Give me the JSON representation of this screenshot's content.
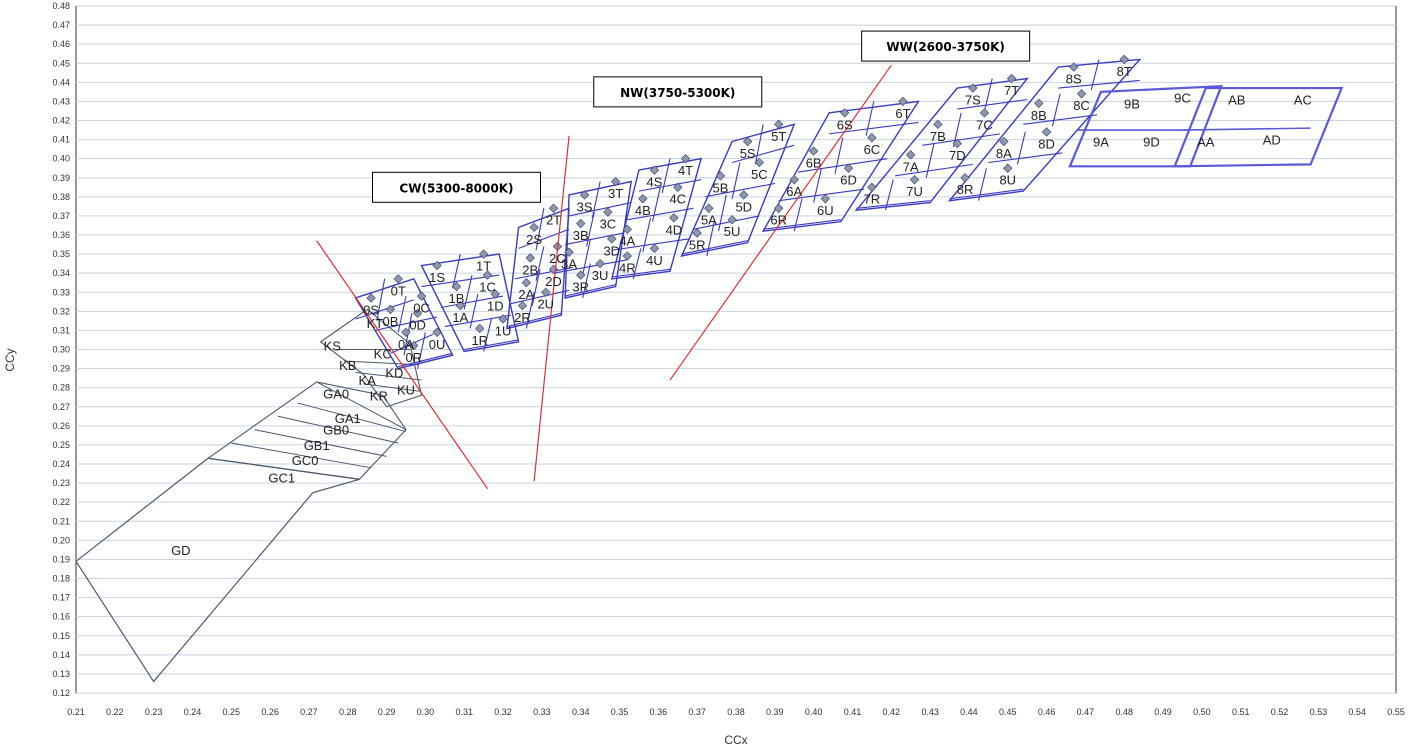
{
  "chart_data": {
    "type": "scatter",
    "xlabel": "CCx",
    "ylabel": "CCy",
    "xlim": [
      0.21,
      0.55
    ],
    "ylim": [
      0.12,
      0.48
    ],
    "grid": "horizontal",
    "xticks": [
      "0.21",
      "0.22",
      "0.23",
      "0.24",
      "0.25",
      "0.26",
      "0.27",
      "0.28",
      "0.29",
      "0.30",
      "0.31",
      "0.32",
      "0.33",
      "0.34",
      "0.35",
      "0.36",
      "0.37",
      "0.38",
      "0.39",
      "0.40",
      "0.41",
      "0.42",
      "0.43",
      "0.44",
      "0.45",
      "0.46",
      "0.47",
      "0.48",
      "0.49",
      "0.50",
      "0.51",
      "0.52",
      "0.53",
      "0.54",
      "0.55"
    ],
    "yticks": [
      "0.12",
      "0.13",
      "0.14",
      "0.15",
      "0.16",
      "0.17",
      "0.18",
      "0.19",
      "0.20",
      "0.21",
      "0.22",
      "0.23",
      "0.24",
      "0.25",
      "0.26",
      "0.27",
      "0.28",
      "0.29",
      "0.30",
      "0.31",
      "0.32",
      "0.33",
      "0.34",
      "0.35",
      "0.36",
      "0.37",
      "0.38",
      "0.39",
      "0.40",
      "0.41",
      "0.42",
      "0.43",
      "0.44",
      "0.45",
      "0.46",
      "0.47",
      "0.48"
    ],
    "region_boxes": [
      {
        "label": "CW(5300-8000K)",
        "x": 0.308,
        "y": 0.385
      },
      {
        "label": "NW(3750-5300K)",
        "x": 0.365,
        "y": 0.435
      },
      {
        "label": "WW(2600-3750K)",
        "x": 0.434,
        "y": 0.459
      }
    ],
    "boundary_lines": [
      {
        "x1": 0.272,
        "y1": 0.357,
        "x2": 0.316,
        "y2": 0.227
      },
      {
        "x1": 0.337,
        "y1": 0.412,
        "x2": 0.328,
        "y2": 0.231
      },
      {
        "x1": 0.42,
        "y1": 0.449,
        "x2": 0.363,
        "y2": 0.284
      }
    ],
    "bin_rows": [
      {
        "y_top": 0.312,
        "y_bot": 0.302,
        "labels": [
          "KS",
          "KT"
        ]
      },
      {
        "y_top": 0.293,
        "y_bot": 0.287,
        "labels": [
          "KB",
          "KC"
        ]
      }
    ],
    "bins": [
      {
        "label": "KS",
        "x": 0.276,
        "y": 0.302
      },
      {
        "label": "KT",
        "x": 0.287,
        "y": 0.314
      },
      {
        "label": "KB",
        "x": 0.28,
        "y": 0.292
      },
      {
        "label": "KC",
        "x": 0.289,
        "y": 0.298
      },
      {
        "label": "KA",
        "x": 0.285,
        "y": 0.284
      },
      {
        "label": "KD",
        "x": 0.292,
        "y": 0.288
      },
      {
        "label": "KR",
        "x": 0.288,
        "y": 0.276
      },
      {
        "label": "KU",
        "x": 0.295,
        "y": 0.279
      },
      {
        "label": "GA0",
        "x": 0.277,
        "y": 0.277
      },
      {
        "label": "GA1",
        "x": 0.28,
        "y": 0.264
      },
      {
        "label": "GB0",
        "x": 0.277,
        "y": 0.258
      },
      {
        "label": "GB1",
        "x": 0.272,
        "y": 0.25
      },
      {
        "label": "GC0",
        "x": 0.269,
        "y": 0.242
      },
      {
        "label": "GC1",
        "x": 0.263,
        "y": 0.233
      },
      {
        "label": "GD",
        "x": 0.237,
        "y": 0.195
      },
      {
        "label": "0S",
        "x": 0.286,
        "y": 0.321
      },
      {
        "label": "0T",
        "x": 0.293,
        "y": 0.331
      },
      {
        "label": "0B",
        "x": 0.291,
        "y": 0.315
      },
      {
        "label": "0C",
        "x": 0.299,
        "y": 0.322
      },
      {
        "label": "0A",
        "x": 0.295,
        "y": 0.303
      },
      {
        "label": "0D",
        "x": 0.298,
        "y": 0.313
      },
      {
        "label": "0R",
        "x": 0.297,
        "y": 0.296
      },
      {
        "label": "0U",
        "x": 0.303,
        "y": 0.303
      },
      {
        "label": "1S",
        "x": 0.303,
        "y": 0.338
      },
      {
        "label": "1T",
        "x": 0.315,
        "y": 0.344
      },
      {
        "label": "1B",
        "x": 0.308,
        "y": 0.327
      },
      {
        "label": "1C",
        "x": 0.316,
        "y": 0.333
      },
      {
        "label": "1A",
        "x": 0.309,
        "y": 0.317
      },
      {
        "label": "1D",
        "x": 0.318,
        "y": 0.323
      },
      {
        "label": "1R",
        "x": 0.314,
        "y": 0.305
      },
      {
        "label": "1U",
        "x": 0.32,
        "y": 0.31
      },
      {
        "label": "2S",
        "x": 0.328,
        "y": 0.358
      },
      {
        "label": "2T",
        "x": 0.333,
        "y": 0.368
      },
      {
        "label": "2B",
        "x": 0.327,
        "y": 0.342
      },
      {
        "label": "2C",
        "x": 0.334,
        "y": 0.348
      },
      {
        "label": "2A",
        "x": 0.326,
        "y": 0.329
      },
      {
        "label": "2D",
        "x": 0.333,
        "y": 0.336
      },
      {
        "label": "2R",
        "x": 0.325,
        "y": 0.317
      },
      {
        "label": "2U",
        "x": 0.331,
        "y": 0.324
      },
      {
        "label": "3S",
        "x": 0.341,
        "y": 0.375
      },
      {
        "label": "3T",
        "x": 0.349,
        "y": 0.382
      },
      {
        "label": "3B",
        "x": 0.34,
        "y": 0.36
      },
      {
        "label": "3C",
        "x": 0.347,
        "y": 0.366
      },
      {
        "label": "3A",
        "x": 0.337,
        "y": 0.345
      },
      {
        "label": "3D",
        "x": 0.348,
        "y": 0.352
      },
      {
        "label": "3R",
        "x": 0.34,
        "y": 0.333
      },
      {
        "label": "3U",
        "x": 0.345,
        "y": 0.339
      },
      {
        "label": "4S",
        "x": 0.359,
        "y": 0.388
      },
      {
        "label": "4T",
        "x": 0.367,
        "y": 0.394
      },
      {
        "label": "4B",
        "x": 0.356,
        "y": 0.373
      },
      {
        "label": "4C",
        "x": 0.365,
        "y": 0.379
      },
      {
        "label": "4A",
        "x": 0.352,
        "y": 0.357
      },
      {
        "label": "4D",
        "x": 0.364,
        "y": 0.363
      },
      {
        "label": "4R",
        "x": 0.352,
        "y": 0.343
      },
      {
        "label": "4U",
        "x": 0.359,
        "y": 0.347
      },
      {
        "label": "5S",
        "x": 0.383,
        "y": 0.403
      },
      {
        "label": "5T",
        "x": 0.391,
        "y": 0.412
      },
      {
        "label": "5B",
        "x": 0.376,
        "y": 0.385
      },
      {
        "label": "5C",
        "x": 0.386,
        "y": 0.392
      },
      {
        "label": "5A",
        "x": 0.373,
        "y": 0.368
      },
      {
        "label": "5D",
        "x": 0.382,
        "y": 0.375
      },
      {
        "label": "5R",
        "x": 0.37,
        "y": 0.355
      },
      {
        "label": "5U",
        "x": 0.379,
        "y": 0.362
      },
      {
        "label": "6S",
        "x": 0.408,
        "y": 0.418
      },
      {
        "label": "6T",
        "x": 0.423,
        "y": 0.424
      },
      {
        "label": "6B",
        "x": 0.4,
        "y": 0.398
      },
      {
        "label": "6C",
        "x": 0.415,
        "y": 0.405
      },
      {
        "label": "6A",
        "x": 0.395,
        "y": 0.383
      },
      {
        "label": "6D",
        "x": 0.409,
        "y": 0.389
      },
      {
        "label": "6R",
        "x": 0.391,
        "y": 0.368
      },
      {
        "label": "6U",
        "x": 0.403,
        "y": 0.373
      },
      {
        "label": "7S",
        "x": 0.441,
        "y": 0.431
      },
      {
        "label": "7T",
        "x": 0.451,
        "y": 0.436
      },
      {
        "label": "7B",
        "x": 0.432,
        "y": 0.412
      },
      {
        "label": "7C",
        "x": 0.444,
        "y": 0.418
      },
      {
        "label": "7A",
        "x": 0.425,
        "y": 0.396
      },
      {
        "label": "7D",
        "x": 0.437,
        "y": 0.402
      },
      {
        "label": "7R",
        "x": 0.415,
        "y": 0.379
      },
      {
        "label": "7U",
        "x": 0.426,
        "y": 0.383
      },
      {
        "label": "8S",
        "x": 0.467,
        "y": 0.442
      },
      {
        "label": "8T",
        "x": 0.48,
        "y": 0.446
      },
      {
        "label": "8B",
        "x": 0.458,
        "y": 0.423
      },
      {
        "label": "8C",
        "x": 0.469,
        "y": 0.428
      },
      {
        "label": "8A",
        "x": 0.449,
        "y": 0.403
      },
      {
        "label": "8D",
        "x": 0.46,
        "y": 0.408
      },
      {
        "label": "8R",
        "x": 0.439,
        "y": 0.384
      },
      {
        "label": "8U",
        "x": 0.45,
        "y": 0.389
      },
      {
        "label": "9B",
        "x": 0.482,
        "y": 0.429
      },
      {
        "label": "9C",
        "x": 0.495,
        "y": 0.432
      },
      {
        "label": "9A",
        "x": 0.474,
        "y": 0.409
      },
      {
        "label": "9D",
        "x": 0.487,
        "y": 0.409
      },
      {
        "label": "AB",
        "x": 0.509,
        "y": 0.431
      },
      {
        "label": "AC",
        "x": 0.526,
        "y": 0.431
      },
      {
        "label": "AA",
        "x": 0.501,
        "y": 0.409
      },
      {
        "label": "AD",
        "x": 0.518,
        "y": 0.41
      }
    ]
  }
}
